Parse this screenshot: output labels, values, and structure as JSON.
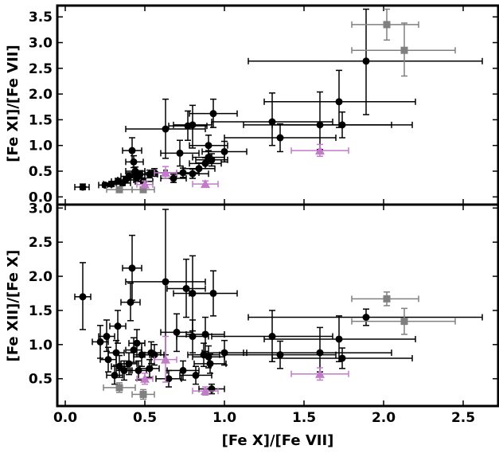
{
  "chart_data": [
    {
      "type": "scatter",
      "panel": "top",
      "title": "",
      "xlabel": "",
      "ylabel": "[Fe XI]/[Fe VII]",
      "xlim": [
        -0.05,
        2.72
      ],
      "ylim": [
        -0.15,
        3.72
      ],
      "xticks": [
        0.0,
        0.5,
        1.0,
        1.5,
        2.0,
        2.5
      ],
      "yticks": [
        0.0,
        0.5,
        1.0,
        1.5,
        2.0,
        2.5,
        3.0,
        3.5
      ],
      "yticklabels": [
        "0.0",
        "0.5",
        "1.0",
        "1.5",
        "2.0",
        "2.5",
        "3.0",
        "3.5"
      ],
      "grid": false,
      "series": [
        {
          "marker": "circle",
          "color": "#000000",
          "points": [
            {
              "x": 0.11,
              "y": 0.19,
              "xlo": 0.06,
              "xhi": 0.15,
              "ylo": 0.14,
              "yhi": 0.25
            },
            {
              "x": 0.25,
              "y": 0.23,
              "xlo": 0.21,
              "xhi": 0.29,
              "ylo": 0.19,
              "yhi": 0.27
            },
            {
              "x": 0.29,
              "y": 0.25,
              "xlo": 0.24,
              "xhi": 0.35,
              "ylo": 0.2,
              "yhi": 0.3
            },
            {
              "x": 0.33,
              "y": 0.3,
              "xlo": 0.29,
              "xhi": 0.37,
              "ylo": 0.25,
              "yhi": 0.36
            },
            {
              "x": 0.36,
              "y": 0.27,
              "xlo": 0.32,
              "xhi": 0.41,
              "ylo": 0.22,
              "yhi": 0.32
            },
            {
              "x": 0.38,
              "y": 0.33,
              "xlo": 0.33,
              "xhi": 0.43,
              "ylo": 0.27,
              "yhi": 0.39
            },
            {
              "x": 0.4,
              "y": 0.4,
              "xlo": 0.35,
              "xhi": 0.46,
              "ylo": 0.33,
              "yhi": 0.47
            },
            {
              "x": 0.42,
              "y": 0.9,
              "xlo": 0.36,
              "xhi": 0.48,
              "ylo": 0.68,
              "yhi": 1.15
            },
            {
              "x": 0.43,
              "y": 0.68,
              "xlo": 0.38,
              "xhi": 0.49,
              "ylo": 0.57,
              "yhi": 0.8
            },
            {
              "x": 0.44,
              "y": 0.5,
              "xlo": 0.38,
              "xhi": 0.5,
              "ylo": 0.42,
              "yhi": 0.58
            },
            {
              "x": 0.45,
              "y": 0.37,
              "xlo": 0.4,
              "xhi": 0.5,
              "ylo": 0.3,
              "yhi": 0.44
            },
            {
              "x": 0.47,
              "y": 0.44,
              "xlo": 0.42,
              "xhi": 0.53,
              "ylo": 0.37,
              "yhi": 0.51
            },
            {
              "x": 0.49,
              "y": 0.3,
              "xlo": 0.44,
              "xhi": 0.55,
              "ylo": 0.25,
              "yhi": 0.36
            },
            {
              "x": 0.53,
              "y": 0.44,
              "xlo": 0.48,
              "xhi": 0.58,
              "ylo": 0.37,
              "yhi": 0.52
            },
            {
              "x": 0.56,
              "y": 0.47,
              "xlo": 0.5,
              "xhi": 0.62,
              "ylo": 0.4,
              "yhi": 0.55
            },
            {
              "x": 0.63,
              "y": 1.32,
              "xlo": 0.38,
              "xhi": 0.88,
              "ylo": 0.75,
              "yhi": 1.9
            },
            {
              "x": 0.68,
              "y": 0.36,
              "xlo": 0.6,
              "xhi": 0.76,
              "ylo": 0.28,
              "yhi": 0.44
            },
            {
              "x": 0.72,
              "y": 0.85,
              "xlo": 0.6,
              "xhi": 0.84,
              "ylo": 0.6,
              "yhi": 1.1
            },
            {
              "x": 0.74,
              "y": 0.47,
              "xlo": 0.64,
              "xhi": 0.84,
              "ylo": 0.38,
              "yhi": 0.56
            },
            {
              "x": 0.77,
              "y": 1.38,
              "xlo": 0.65,
              "xhi": 0.89,
              "ylo": 1.1,
              "yhi": 1.67
            },
            {
              "x": 0.8,
              "y": 1.4,
              "xlo": 0.68,
              "xhi": 0.92,
              "ylo": 0.95,
              "yhi": 1.78
            },
            {
              "x": 0.8,
              "y": 0.45,
              "xlo": 0.7,
              "xhi": 0.9,
              "ylo": 0.36,
              "yhi": 0.54
            },
            {
              "x": 0.84,
              "y": 0.55,
              "xlo": 0.74,
              "xhi": 0.94,
              "ylo": 0.45,
              "yhi": 0.66
            },
            {
              "x": 0.88,
              "y": 0.65,
              "xlo": 0.78,
              "xhi": 0.98,
              "ylo": 0.55,
              "yhi": 0.76
            },
            {
              "x": 0.9,
              "y": 1.0,
              "xlo": 0.78,
              "xhi": 1.02,
              "ylo": 0.8,
              "yhi": 1.2
            },
            {
              "x": 0.9,
              "y": 0.77,
              "xlo": 0.8,
              "xhi": 1.0,
              "ylo": 0.65,
              "yhi": 0.9
            },
            {
              "x": 0.92,
              "y": 0.72,
              "xlo": 0.82,
              "xhi": 1.02,
              "ylo": 0.6,
              "yhi": 0.84
            },
            {
              "x": 0.93,
              "y": 1.62,
              "xlo": 0.78,
              "xhi": 1.08,
              "ylo": 1.35,
              "yhi": 1.9
            },
            {
              "x": 1.0,
              "y": 0.88,
              "xlo": 0.86,
              "xhi": 1.14,
              "ylo": 0.68,
              "yhi": 1.08
            },
            {
              "x": 1.3,
              "y": 1.46,
              "xlo": 0.92,
              "xhi": 1.68,
              "ylo": 1.0,
              "yhi": 2.02
            },
            {
              "x": 1.35,
              "y": 1.15,
              "xlo": 1.0,
              "xhi": 1.7,
              "ylo": 0.88,
              "yhi": 1.42
            },
            {
              "x": 1.6,
              "y": 1.4,
              "xlo": 1.12,
              "xhi": 2.05,
              "ylo": 0.92,
              "yhi": 2.04
            },
            {
              "x": 1.72,
              "y": 1.85,
              "xlo": 1.25,
              "xhi": 2.2,
              "ylo": 1.35,
              "yhi": 2.46
            },
            {
              "x": 1.74,
              "y": 1.4,
              "xlo": 1.3,
              "xhi": 2.18,
              "ylo": 1.15,
              "yhi": 1.65
            },
            {
              "x": 1.89,
              "y": 2.64,
              "xlo": 1.15,
              "xhi": 2.62,
              "ylo": 1.6,
              "yhi": 3.65
            }
          ]
        },
        {
          "marker": "square",
          "color": "#808080",
          "points": [
            {
              "x": 0.34,
              "y": 0.14,
              "xlo": 0.26,
              "xhi": 0.42,
              "ylo": 0.1,
              "yhi": 0.18
            },
            {
              "x": 0.49,
              "y": 0.14,
              "xlo": 0.42,
              "xhi": 0.56,
              "ylo": 0.1,
              "yhi": 0.18
            },
            {
              "x": 2.02,
              "y": 3.35,
              "xlo": 1.8,
              "xhi": 2.22,
              "ylo": 3.05,
              "yhi": 3.65
            },
            {
              "x": 2.13,
              "y": 2.85,
              "xlo": 1.8,
              "xhi": 2.45,
              "ylo": 2.35,
              "yhi": 3.38
            }
          ]
        },
        {
          "marker": "triangle",
          "color": "#c27bc9",
          "points": [
            {
              "x": 0.5,
              "y": 0.24,
              "xlo": 0.45,
              "xhi": 0.55,
              "ylo": 0.18,
              "yhi": 0.31
            },
            {
              "x": 0.63,
              "y": 0.47,
              "xlo": 0.56,
              "xhi": 0.7,
              "ylo": 0.36,
              "yhi": 0.59
            },
            {
              "x": 0.88,
              "y": 0.25,
              "xlo": 0.8,
              "xhi": 0.96,
              "ylo": 0.2,
              "yhi": 0.31
            },
            {
              "x": 1.6,
              "y": 0.9,
              "xlo": 1.42,
              "xhi": 1.78,
              "ylo": 0.79,
              "yhi": 1.02
            }
          ]
        }
      ]
    },
    {
      "type": "scatter",
      "panel": "bottom",
      "title": "",
      "xlabel": "[Fe X]/[Fe VII]",
      "ylabel": "[Fe XII]/[Fe X]",
      "xlim": [
        -0.05,
        2.72
      ],
      "ylim": [
        0.1,
        3.05
      ],
      "xticks": [
        0.0,
        0.5,
        1.0,
        1.5,
        2.0,
        2.5
      ],
      "xticklabels": [
        "0.0",
        "0.5",
        "1.0",
        "1.5",
        "2.0",
        "2.5"
      ],
      "yticks": [
        0.5,
        1.0,
        1.5,
        2.0,
        2.5,
        3.0
      ],
      "yticklabels": [
        "0.5",
        "1.0",
        "1.5",
        "2.0",
        "2.5",
        "3.0"
      ],
      "grid": false,
      "series": [
        {
          "marker": "circle",
          "color": "#000000",
          "points": [
            {
              "x": 0.11,
              "y": 1.7,
              "xlo": 0.06,
              "xhi": 0.16,
              "ylo": 1.22,
              "yhi": 2.2
            },
            {
              "x": 0.22,
              "y": 1.04,
              "xlo": 0.17,
              "xhi": 0.27,
              "ylo": 0.8,
              "yhi": 1.28
            },
            {
              "x": 0.26,
              "y": 1.12,
              "xlo": 0.21,
              "xhi": 0.31,
              "ylo": 0.9,
              "yhi": 1.36
            },
            {
              "x": 0.27,
              "y": 0.78,
              "xlo": 0.22,
              "xhi": 0.32,
              "ylo": 0.6,
              "yhi": 0.96
            },
            {
              "x": 0.31,
              "y": 0.55,
              "xlo": 0.26,
              "xhi": 0.36,
              "ylo": 0.42,
              "yhi": 0.68
            },
            {
              "x": 0.32,
              "y": 0.88,
              "xlo": 0.27,
              "xhi": 0.37,
              "ylo": 0.7,
              "yhi": 1.06
            },
            {
              "x": 0.33,
              "y": 1.27,
              "xlo": 0.28,
              "xhi": 0.38,
              "ylo": 1.02,
              "yhi": 1.5
            },
            {
              "x": 0.34,
              "y": 0.68,
              "xlo": 0.29,
              "xhi": 0.39,
              "ylo": 0.52,
              "yhi": 0.84
            },
            {
              "x": 0.37,
              "y": 0.62,
              "xlo": 0.32,
              "xhi": 0.42,
              "ylo": 0.48,
              "yhi": 0.76
            },
            {
              "x": 0.4,
              "y": 0.72,
              "xlo": 0.35,
              "xhi": 0.45,
              "ylo": 0.56,
              "yhi": 0.88
            },
            {
              "x": 0.41,
              "y": 1.62,
              "xlo": 0.35,
              "xhi": 0.47,
              "ylo": 1.35,
              "yhi": 1.9
            },
            {
              "x": 0.42,
              "y": 2.12,
              "xlo": 0.36,
              "xhi": 0.48,
              "ylo": 1.65,
              "yhi": 2.6
            },
            {
              "x": 0.43,
              "y": 0.92,
              "xlo": 0.38,
              "xhi": 0.48,
              "ylo": 0.74,
              "yhi": 1.1
            },
            {
              "x": 0.45,
              "y": 1.02,
              "xlo": 0.4,
              "xhi": 0.5,
              "ylo": 0.82,
              "yhi": 1.22
            },
            {
              "x": 0.46,
              "y": 0.62,
              "xlo": 0.41,
              "xhi": 0.51,
              "ylo": 0.48,
              "yhi": 0.76
            },
            {
              "x": 0.48,
              "y": 0.85,
              "xlo": 0.43,
              "xhi": 0.53,
              "ylo": 0.68,
              "yhi": 1.02
            },
            {
              "x": 0.53,
              "y": 0.65,
              "xlo": 0.47,
              "xhi": 0.59,
              "ylo": 0.52,
              "yhi": 0.78
            },
            {
              "x": 0.54,
              "y": 0.88,
              "xlo": 0.48,
              "xhi": 0.6,
              "ylo": 0.72,
              "yhi": 1.04
            },
            {
              "x": 0.56,
              "y": 0.85,
              "xlo": 0.5,
              "xhi": 0.62,
              "ylo": 0.7,
              "yhi": 1.0
            },
            {
              "x": 0.63,
              "y": 1.92,
              "xlo": 0.38,
              "xhi": 0.88,
              "ylo": 0.85,
              "yhi": 2.98
            },
            {
              "x": 0.65,
              "y": 0.5,
              "xlo": 0.57,
              "xhi": 0.73,
              "ylo": 0.38,
              "yhi": 0.62
            },
            {
              "x": 0.7,
              "y": 1.18,
              "xlo": 0.6,
              "xhi": 0.8,
              "ylo": 0.9,
              "yhi": 1.45
            },
            {
              "x": 0.74,
              "y": 0.62,
              "xlo": 0.64,
              "xhi": 0.84,
              "ylo": 0.48,
              "yhi": 0.76
            },
            {
              "x": 0.76,
              "y": 1.82,
              "xlo": 0.64,
              "xhi": 0.88,
              "ylo": 1.4,
              "yhi": 2.25
            },
            {
              "x": 0.8,
              "y": 1.75,
              "xlo": 0.68,
              "xhi": 0.92,
              "ylo": 1.2,
              "yhi": 2.3
            },
            {
              "x": 0.8,
              "y": 1.12,
              "xlo": 0.7,
              "xhi": 0.9,
              "ylo": 0.88,
              "yhi": 1.36
            },
            {
              "x": 0.82,
              "y": 0.55,
              "xlo": 0.72,
              "xhi": 0.92,
              "ylo": 0.42,
              "yhi": 0.68
            },
            {
              "x": 0.87,
              "y": 0.85,
              "xlo": 0.77,
              "xhi": 0.97,
              "ylo": 0.68,
              "yhi": 1.02
            },
            {
              "x": 0.88,
              "y": 1.15,
              "xlo": 0.76,
              "xhi": 1.0,
              "ylo": 0.9,
              "yhi": 1.4
            },
            {
              "x": 0.9,
              "y": 0.82,
              "xlo": 0.8,
              "xhi": 1.0,
              "ylo": 0.66,
              "yhi": 0.98
            },
            {
              "x": 0.91,
              "y": 0.72,
              "xlo": 0.81,
              "xhi": 1.01,
              "ylo": 0.58,
              "yhi": 0.86
            },
            {
              "x": 0.92,
              "y": 0.35,
              "xlo": 0.84,
              "xhi": 1.0,
              "ylo": 0.28,
              "yhi": 0.42
            },
            {
              "x": 0.93,
              "y": 1.75,
              "xlo": 0.78,
              "xhi": 1.08,
              "ylo": 1.42,
              "yhi": 2.08
            },
            {
              "x": 1.0,
              "y": 0.88,
              "xlo": 0.86,
              "xhi": 1.14,
              "ylo": 0.7,
              "yhi": 1.06
            },
            {
              "x": 1.3,
              "y": 1.12,
              "xlo": 0.92,
              "xhi": 1.68,
              "ylo": 0.75,
              "yhi": 1.5
            },
            {
              "x": 1.35,
              "y": 0.85,
              "xlo": 1.0,
              "xhi": 1.7,
              "ylo": 0.65,
              "yhi": 1.05
            },
            {
              "x": 1.6,
              "y": 0.88,
              "xlo": 1.12,
              "xhi": 2.05,
              "ylo": 0.6,
              "yhi": 1.25
            },
            {
              "x": 1.72,
              "y": 1.08,
              "xlo": 1.25,
              "xhi": 2.2,
              "ylo": 0.75,
              "yhi": 1.42
            },
            {
              "x": 1.74,
              "y": 0.8,
              "xlo": 1.3,
              "xhi": 2.18,
              "ylo": 0.65,
              "yhi": 0.95
            },
            {
              "x": 1.89,
              "y": 1.4,
              "xlo": 1.15,
              "xhi": 2.62,
              "ylo": 1.28,
              "yhi": 1.52
            }
          ]
        },
        {
          "marker": "square",
          "color": "#808080",
          "points": [
            {
              "x": 0.34,
              "y": 0.37,
              "xlo": 0.24,
              "xhi": 0.44,
              "ylo": 0.3,
              "yhi": 0.44
            },
            {
              "x": 0.49,
              "y": 0.27,
              "xlo": 0.42,
              "xhi": 0.56,
              "ylo": 0.2,
              "yhi": 0.34
            },
            {
              "x": 2.02,
              "y": 1.67,
              "xlo": 1.8,
              "xhi": 2.22,
              "ylo": 1.57,
              "yhi": 1.77
            },
            {
              "x": 2.13,
              "y": 1.34,
              "xlo": 1.8,
              "xhi": 2.45,
              "ylo": 1.15,
              "yhi": 1.53
            }
          ]
        },
        {
          "marker": "triangle",
          "color": "#c27bc9",
          "points": [
            {
              "x": 0.5,
              "y": 0.5,
              "xlo": 0.45,
              "xhi": 0.55,
              "ylo": 0.42,
              "yhi": 0.58
            },
            {
              "x": 0.63,
              "y": 0.78,
              "xlo": 0.56,
              "xhi": 0.7,
              "ylo": 0.45,
              "yhi": 1.12
            },
            {
              "x": 0.88,
              "y": 0.32,
              "xlo": 0.8,
              "xhi": 0.96,
              "ylo": 0.26,
              "yhi": 0.38
            },
            {
              "x": 1.6,
              "y": 0.57,
              "xlo": 1.42,
              "xhi": 1.78,
              "ylo": 0.48,
              "yhi": 0.66
            }
          ]
        }
      ]
    }
  ]
}
